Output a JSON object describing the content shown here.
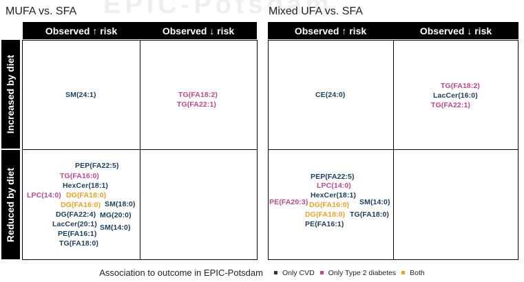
{
  "watermark": "EPIC-Potsdam",
  "row_labels": [
    "Increased by diet",
    "Reduced by diet"
  ],
  "col_labels": [
    "Observed ↑ risk",
    "Observed ↓ risk"
  ],
  "colors": {
    "cvd": "#1a3d5c",
    "t2d": "#c0478a",
    "both": "#efa020"
  },
  "panels": [
    {
      "title": "MUFA vs. SFA",
      "cells": {
        "inc_up": [
          {
            "text": "SM(24:1)",
            "group": "cvd"
          }
        ],
        "inc_down": [
          {
            "text": "TG(FA18:2)",
            "group": "t2d"
          },
          {
            "text": "TG(FA22:1)",
            "group": "t2d"
          }
        ],
        "red_up": [
          {
            "text": "PEP(FA22:5)",
            "group": "cvd"
          },
          {
            "text": "TG(FA16:0)",
            "group": "t2d"
          },
          {
            "text": "HexCer(18:1)",
            "group": "cvd"
          },
          {
            "text": "LPC(14:0)",
            "group": "t2d"
          },
          {
            "text": "DG(FA18:0)",
            "group": "both"
          },
          {
            "text": "DG(FA16:0)",
            "group": "both"
          },
          {
            "text": "SM(18:0)",
            "group": "cvd"
          },
          {
            "text": "DG(FA22:4)",
            "group": "cvd"
          },
          {
            "text": "MG(20:0)",
            "group": "cvd"
          },
          {
            "text": "LacCer(20:1)",
            "group": "cvd"
          },
          {
            "text": "SM(14:0)",
            "group": "cvd"
          },
          {
            "text": "PE(FA16:1)",
            "group": "cvd"
          },
          {
            "text": "TG(FA18:0)",
            "group": "cvd"
          }
        ],
        "red_down": []
      }
    },
    {
      "title": "Mixed UFA vs. SFA",
      "cells": {
        "inc_up": [
          {
            "text": "CE(24:0)",
            "group": "cvd"
          }
        ],
        "inc_down": [
          {
            "text": "TG(FA18:2)",
            "group": "t2d"
          },
          {
            "text": "LacCer(16:0)",
            "group": "cvd"
          },
          {
            "text": "TG(FA22:1)",
            "group": "t2d"
          }
        ],
        "red_up": [
          {
            "text": "PEP(FA22:5)",
            "group": "cvd"
          },
          {
            "text": "LPC(14:0)",
            "group": "t2d"
          },
          {
            "text": "HexCer(18:1)",
            "group": "cvd"
          },
          {
            "text": "PE(FA20:3)",
            "group": "t2d"
          },
          {
            "text": "SM(14:0)",
            "group": "cvd"
          },
          {
            "text": "DG(FA16:0)",
            "group": "both"
          },
          {
            "text": "DG(FA18:0)",
            "group": "both"
          },
          {
            "text": "TG(FA18:0)",
            "group": "cvd"
          },
          {
            "text": "PE(FA16:1)",
            "group": "cvd"
          }
        ],
        "red_down": []
      }
    }
  ],
  "legend": {
    "title": "Association to outcome in EPIC-Potsdam",
    "items": [
      {
        "label": "Only CVD",
        "group": "cvd"
      },
      {
        "label": "Only Type 2 diabetes",
        "group": "t2d"
      },
      {
        "label": "Both",
        "group": "both"
      }
    ]
  }
}
